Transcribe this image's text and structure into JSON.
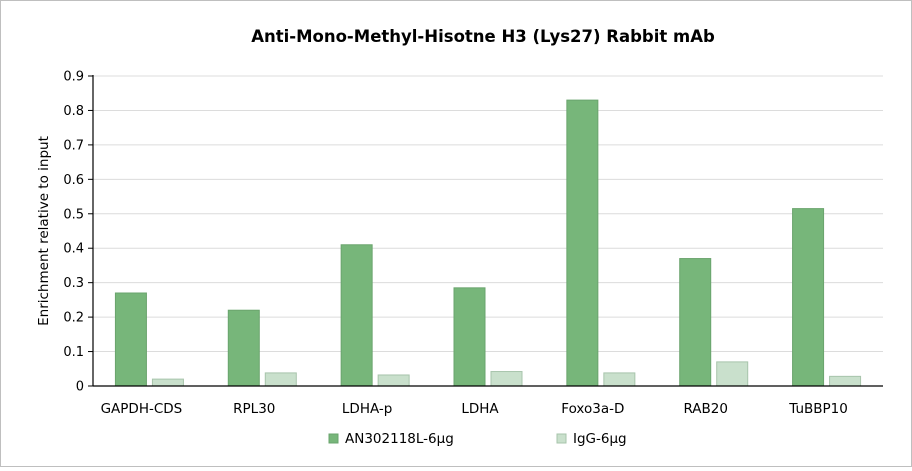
{
  "chart_data": {
    "type": "bar",
    "title": "Anti-Mono-Methyl-Hisotne H3 (Lys27) Rabbit mAb",
    "xlabel": "",
    "ylabel": "Enrichment relative to input",
    "ylim": [
      0,
      0.9
    ],
    "yticks": [
      "0",
      "0.1",
      "0.2",
      "0.3",
      "0.4",
      "0.5",
      "0.6",
      "0.7",
      "0.8",
      "0.9"
    ],
    "grid": true,
    "legend_position": "bottom",
    "categories": [
      "GAPDH-CDS",
      "RPL30",
      "LDHA-p",
      "LDHA",
      "Foxo3a-D",
      "RAB20",
      "TuBBP10"
    ],
    "series": [
      {
        "name": "AN302118L-6μg",
        "color": "#77b67a",
        "edge": "#6aa46d",
        "values": [
          0.27,
          0.22,
          0.41,
          0.285,
          0.83,
          0.37,
          0.515
        ]
      },
      {
        "name": "IgG-6μg",
        "color": "#c9e0cc",
        "edge": "#a7c4ab",
        "values": [
          0.02,
          0.038,
          0.032,
          0.042,
          0.038,
          0.07,
          0.028
        ]
      }
    ]
  }
}
